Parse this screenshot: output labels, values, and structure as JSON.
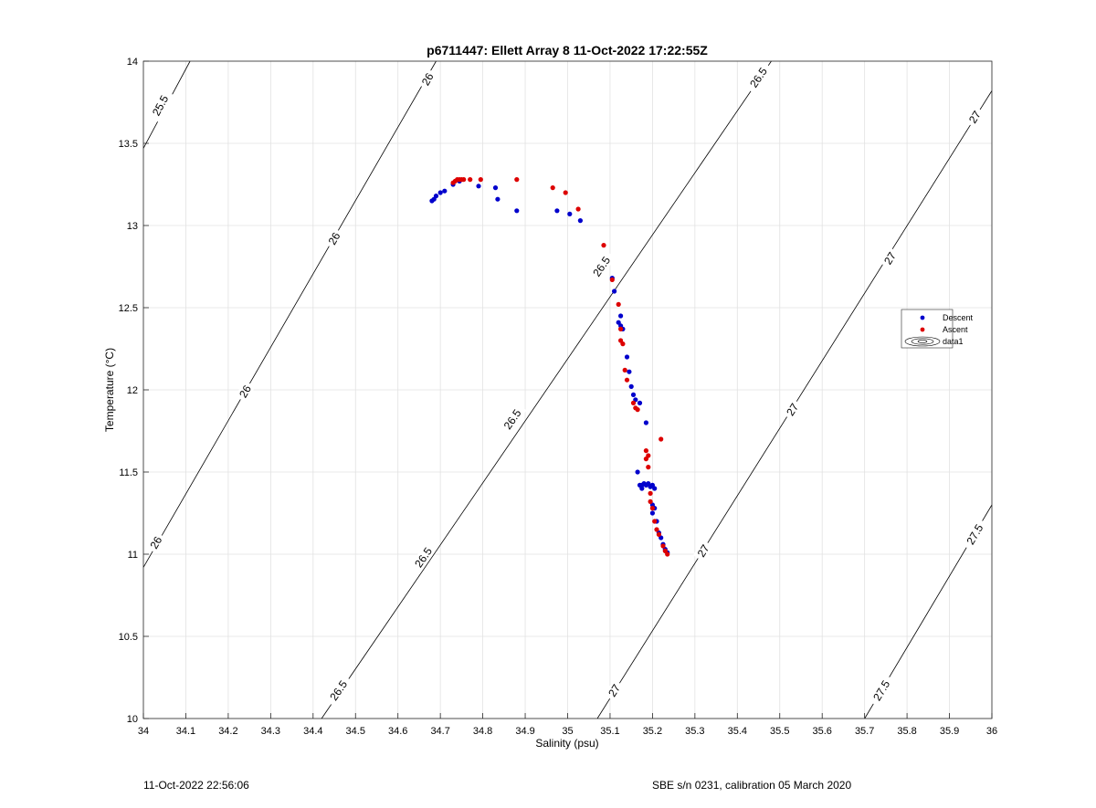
{
  "footer": {
    "left_text": "11-Oct-2022 22:56:06",
    "right_text": "SBE s/n 0231, calibration 05 March 2020"
  },
  "chart_data": {
    "type": "scatter",
    "title": "p6711447: Ellett Array 8 11-Oct-2022 17:22:55Z",
    "xlabel": "Salinity (psu)",
    "ylabel": "Temperature (°C)",
    "xlim": [
      34,
      36
    ],
    "ylim": [
      10,
      14
    ],
    "x_ticks": [
      "34",
      "34.1",
      "34.2",
      "34.3",
      "34.4",
      "34.5",
      "34.6",
      "34.7",
      "34.8",
      "34.9",
      "35",
      "35.1",
      "35.2",
      "35.3",
      "35.4",
      "35.5",
      "35.6",
      "35.7",
      "35.8",
      "35.9",
      "36"
    ],
    "y_ticks": [
      "10",
      "10.5",
      "11",
      "11.5",
      "12",
      "12.5",
      "13",
      "13.5",
      "14"
    ],
    "grid": true,
    "legend_position": "right",
    "legend": [
      "Descent",
      "Ascent",
      "data1"
    ],
    "colors": {
      "descent": "#0000cc",
      "ascent": "#dd0000",
      "contour": "#000000",
      "grid": "#e2e2e2"
    },
    "density_contours": [
      {
        "level": "25.5",
        "points": [
          [
            34.0,
            13.47
          ],
          [
            34.11,
            14.0
          ]
        ],
        "labels": [
          [
            34.04,
            13.73
          ]
        ]
      },
      {
        "level": "26",
        "points": [
          [
            34.0,
            10.92
          ],
          [
            34.69,
            14.0
          ]
        ],
        "labels": [
          [
            34.03,
            11.07
          ],
          [
            34.24,
            11.99
          ],
          [
            34.45,
            12.92
          ],
          [
            34.67,
            13.89
          ]
        ]
      },
      {
        "level": "26.5",
        "points": [
          [
            34.42,
            10.0
          ],
          [
            35.48,
            14.0
          ]
        ],
        "labels": [
          [
            34.46,
            10.17
          ],
          [
            34.66,
            10.98
          ],
          [
            34.87,
            11.82
          ],
          [
            35.08,
            12.75
          ],
          [
            35.45,
            13.9
          ]
        ]
      },
      {
        "level": "27",
        "points": [
          [
            35.07,
            10.0
          ],
          [
            36.0,
            13.82
          ]
        ],
        "labels": [
          [
            35.11,
            10.17
          ],
          [
            35.32,
            11.02
          ],
          [
            35.53,
            11.88
          ],
          [
            35.76,
            12.8
          ],
          [
            35.96,
            13.66
          ]
        ]
      },
      {
        "level": "27.5",
        "points": [
          [
            35.7,
            10.0
          ],
          [
            36.0,
            11.3
          ]
        ],
        "labels": [
          [
            35.74,
            10.17
          ],
          [
            35.96,
            11.12
          ]
        ]
      }
    ],
    "series": [
      {
        "name": "Descent",
        "x": [
          34.68,
          34.685,
          34.69,
          34.7,
          34.71,
          34.73,
          34.745,
          34.79,
          34.83,
          34.835,
          34.88,
          34.975,
          35.005,
          35.03,
          35.105,
          35.11,
          35.12,
          35.125,
          35.125,
          35.13,
          35.14,
          35.145,
          35.15,
          35.155,
          35.16,
          35.17,
          35.175,
          35.185,
          35.165,
          35.17,
          35.175,
          35.18,
          35.185,
          35.19,
          35.195,
          35.2,
          35.205,
          35.2,
          35.205,
          35.2,
          35.21,
          35.215,
          35.22,
          35.225,
          35.23,
          35.235
        ],
        "y": [
          13.15,
          13.16,
          13.18,
          13.2,
          13.21,
          13.25,
          13.27,
          13.24,
          13.23,
          13.16,
          13.09,
          13.09,
          13.07,
          13.03,
          12.68,
          12.6,
          12.41,
          12.45,
          12.39,
          12.37,
          12.2,
          12.11,
          12.02,
          11.97,
          11.94,
          11.92,
          11.42,
          11.8,
          11.5,
          11.42,
          11.4,
          11.43,
          11.42,
          11.43,
          11.41,
          11.42,
          11.4,
          11.3,
          11.28,
          11.25,
          11.2,
          11.13,
          11.1,
          11.06,
          11.03,
          11.01
        ]
      },
      {
        "name": "Ascent",
        "x": [
          34.73,
          34.735,
          34.74,
          34.745,
          34.75,
          34.755,
          34.77,
          34.795,
          34.88,
          34.965,
          34.995,
          35.025,
          35.085,
          35.105,
          35.12,
          35.125,
          35.125,
          35.13,
          35.135,
          35.14,
          35.155,
          35.16,
          35.165,
          35.185,
          35.19,
          35.185,
          35.19,
          35.195,
          35.195,
          35.2,
          35.205,
          35.21,
          35.215,
          35.22,
          35.225,
          35.23,
          35.235
        ],
        "y": [
          13.26,
          13.27,
          13.28,
          13.28,
          13.28,
          13.28,
          13.28,
          13.28,
          13.28,
          13.23,
          13.2,
          13.1,
          12.88,
          12.67,
          12.52,
          12.37,
          12.3,
          12.28,
          12.12,
          12.06,
          11.92,
          11.89,
          11.88,
          11.63,
          11.6,
          11.58,
          11.53,
          11.37,
          11.32,
          11.28,
          11.2,
          11.15,
          11.12,
          11.7,
          11.05,
          11.02,
          11.0
        ]
      }
    ]
  }
}
